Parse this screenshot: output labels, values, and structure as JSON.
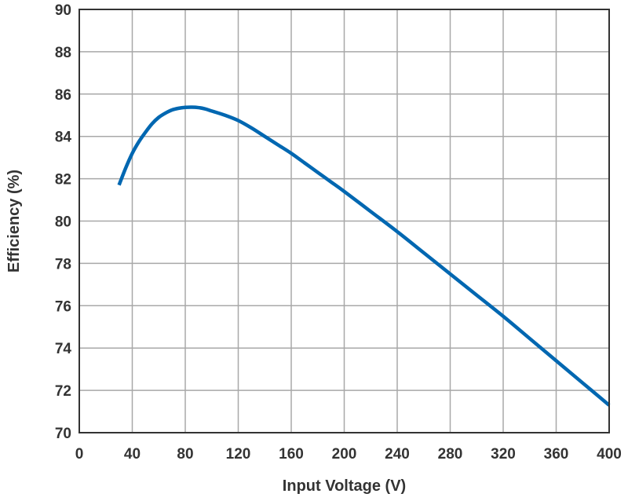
{
  "chart_data": {
    "type": "line",
    "xlabel": "Input Voltage (V)",
    "ylabel": "Efficiency (%)",
    "xlim": [
      0,
      400
    ],
    "ylim": [
      70,
      90
    ],
    "xticks": [
      0,
      40,
      80,
      120,
      160,
      200,
      240,
      280,
      320,
      360,
      400
    ],
    "yticks": [
      70,
      72,
      74,
      76,
      78,
      80,
      82,
      84,
      86,
      88,
      90
    ],
    "grid": true,
    "legend": "none",
    "series": [
      {
        "color": "#0067b1",
        "x": [
          30,
          35,
          40,
          45,
          50,
          55,
          60,
          65,
          70,
          75,
          80,
          85,
          90,
          95,
          100,
          110,
          120,
          130,
          140,
          150,
          160,
          170,
          180,
          190,
          200,
          220,
          240,
          260,
          280,
          300,
          320,
          340,
          360,
          380,
          400
        ],
        "y": [
          81.7,
          82.5,
          83.2,
          83.75,
          84.2,
          84.6,
          84.9,
          85.1,
          85.25,
          85.33,
          85.37,
          85.38,
          85.36,
          85.3,
          85.2,
          85.0,
          84.75,
          84.4,
          84.0,
          83.6,
          83.2,
          82.75,
          82.3,
          81.85,
          81.4,
          80.45,
          79.5,
          78.5,
          77.5,
          76.5,
          75.5,
          74.45,
          73.4,
          72.35,
          71.3
        ]
      }
    ]
  }
}
